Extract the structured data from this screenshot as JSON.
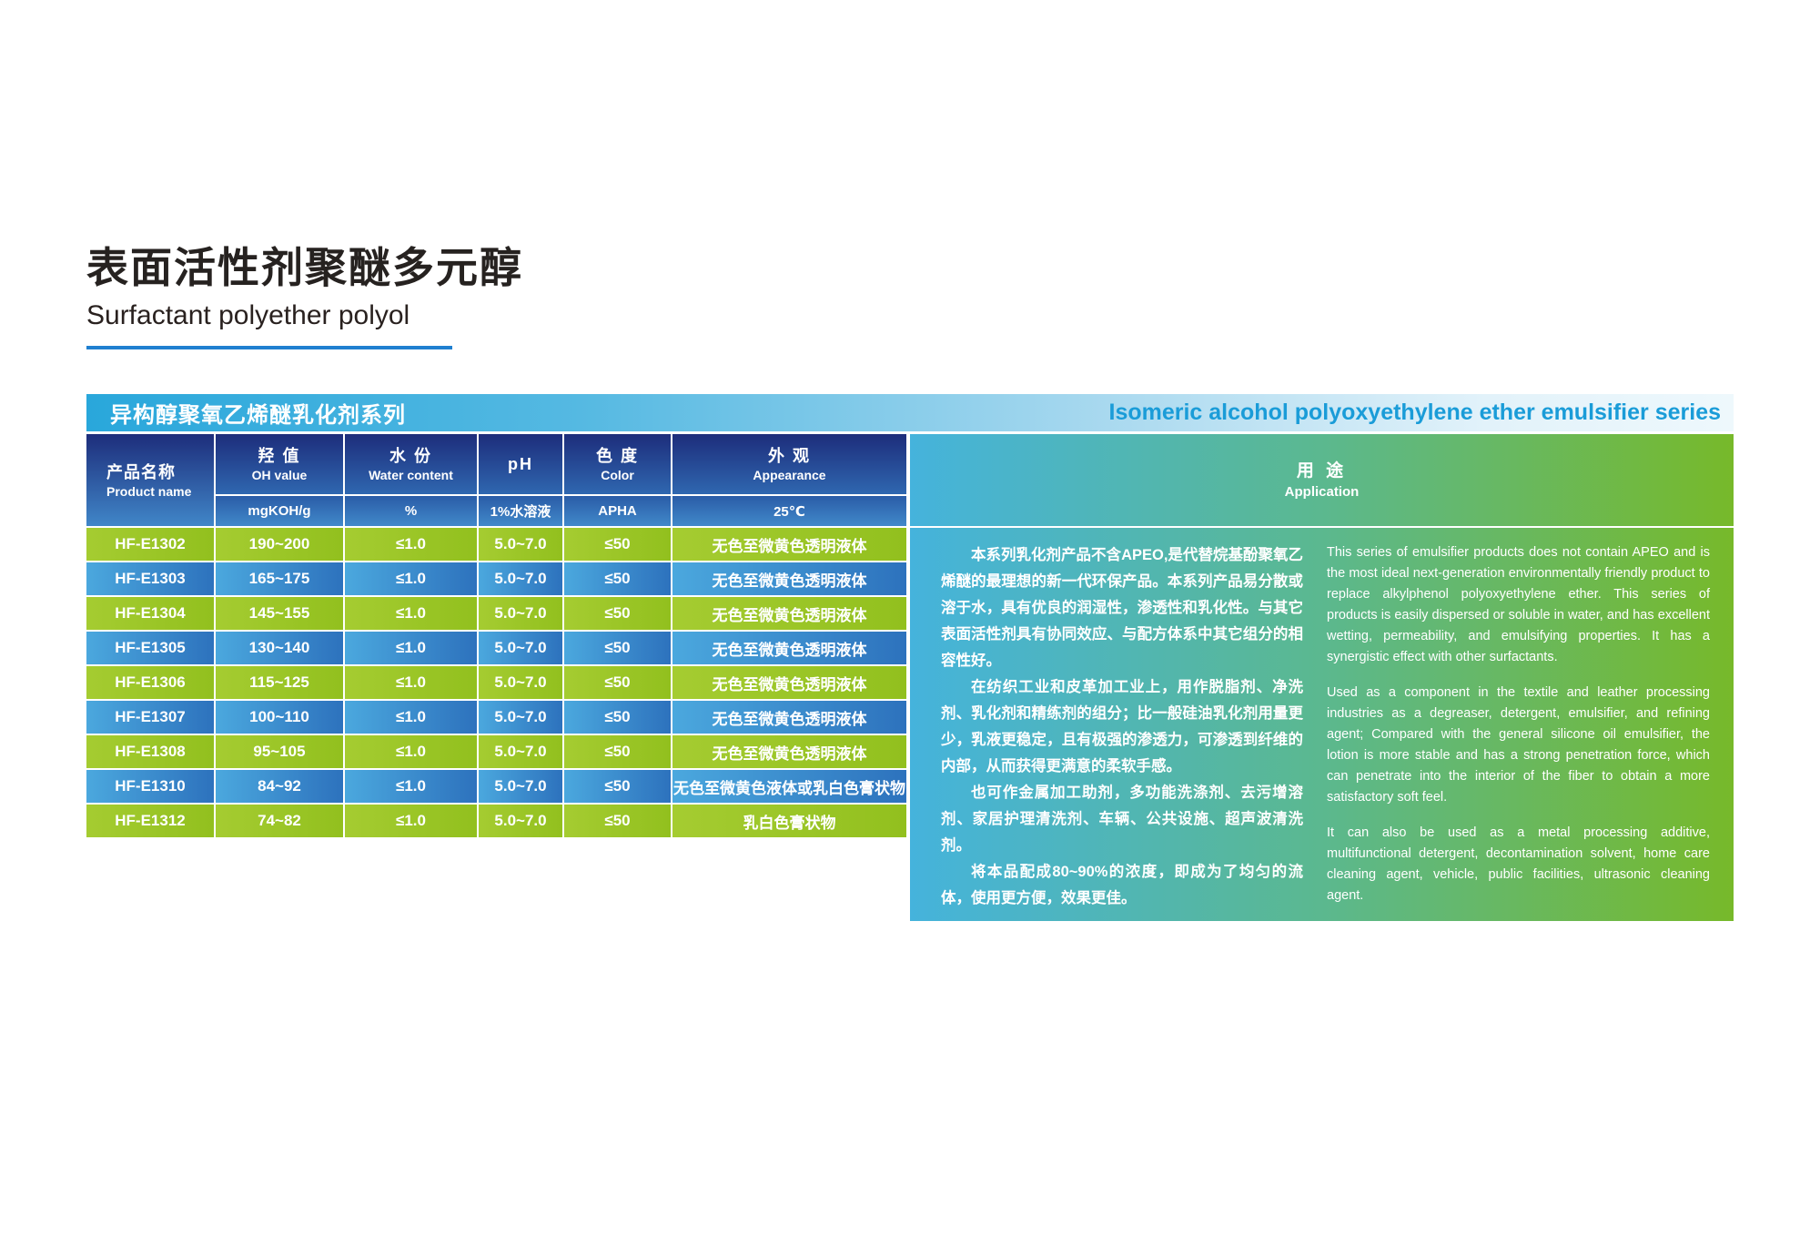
{
  "page": {
    "title_zh": "表面活性剂聚醚多元醇",
    "title_en": "Surfactant polyether polyol"
  },
  "banner": {
    "series_zh": "异构醇聚氧乙烯醚乳化剂系列",
    "series_en": "Isomeric alcohol polyoxyethylene ether emulsifier series"
  },
  "table": {
    "columns": [
      {
        "zh": "产品名称",
        "en": "Product name",
        "unit": ""
      },
      {
        "zh": "羟 值",
        "en": "OH value",
        "unit": "mgKOH/g"
      },
      {
        "zh": "水 份",
        "en": "Water content",
        "unit": "%"
      },
      {
        "zh": "pH",
        "en": "",
        "unit": "1%水溶液"
      },
      {
        "zh": "色 度",
        "en": "Color",
        "unit": "APHA"
      },
      {
        "zh": "外 观",
        "en": "Appearance",
        "unit": "25℃"
      }
    ],
    "rows": [
      {
        "name": "HF-E1302",
        "oh": "190~200",
        "water": "≤1.0",
        "ph": "5.0~7.0",
        "color": "≤50",
        "appearance": "无色至微黄色透明液体"
      },
      {
        "name": "HF-E1303",
        "oh": "165~175",
        "water": "≤1.0",
        "ph": "5.0~7.0",
        "color": "≤50",
        "appearance": "无色至微黄色透明液体"
      },
      {
        "name": "HF-E1304",
        "oh": "145~155",
        "water": "≤1.0",
        "ph": "5.0~7.0",
        "color": "≤50",
        "appearance": "无色至微黄色透明液体"
      },
      {
        "name": "HF-E1305",
        "oh": "130~140",
        "water": "≤1.0",
        "ph": "5.0~7.0",
        "color": "≤50",
        "appearance": "无色至微黄色透明液体"
      },
      {
        "name": "HF-E1306",
        "oh": "115~125",
        "water": "≤1.0",
        "ph": "5.0~7.0",
        "color": "≤50",
        "appearance": "无色至微黄色透明液体"
      },
      {
        "name": "HF-E1307",
        "oh": "100~110",
        "water": "≤1.0",
        "ph": "5.0~7.0",
        "color": "≤50",
        "appearance": "无色至微黄色透明液体"
      },
      {
        "name": "HF-E1308",
        "oh": "95~105",
        "water": "≤1.0",
        "ph": "5.0~7.0",
        "color": "≤50",
        "appearance": "无色至微黄色透明液体"
      },
      {
        "name": "HF-E1310",
        "oh": "84~92",
        "water": "≤1.0",
        "ph": "5.0~7.0",
        "color": "≤50",
        "appearance": "无色至微黄色液体或乳白色膏状物"
      },
      {
        "name": "HF-E1312",
        "oh": "74~82",
        "water": "≤1.0",
        "ph": "5.0~7.0",
        "color": "≤50",
        "appearance": "乳白色膏状物"
      }
    ]
  },
  "application": {
    "header_zh": "用 途",
    "header_en": "Application",
    "zh_paragraphs": [
      "本系列乳化剂产品不含APEO,是代替烷基酚聚氧乙烯醚的最理想的新一代环保产品。本系列产品易分散或溶于水，具有优良的润湿性，渗透性和乳化性。与其它表面活性剂具有协同效应、与配方体系中其它组分的相容性好。",
      "在纺织工业和皮革加工业上，用作脱脂剂、净洗剂、乳化剂和精练剂的组分；比一般硅油乳化剂用量更少，乳液更稳定，且有极强的渗透力，可渗透到纤维的内部，从而获得更满意的柔软手感。",
      "也可作金属加工助剂，多功能洗涤剂、去污增溶剂、家居护理清洗剂、车辆、公共设施、超声波清洗剂。",
      "将本品配成80~90%的浓度，即成为了均匀的流体，使用更方便，效果更佳。"
    ],
    "en_paragraphs": [
      "This series of emulsifier products does not contain APEO and is the most ideal next-generation environmentally friendly product to replace alkylphenol polyoxyethylene ether. This series of products is easily dispersed or soluble in water, and has excellent wetting, permeability, and emulsifying properties. It has a synergistic effect with other surfactants.",
      "Used as a component in the textile and leather processing industries as a degreaser, detergent, emulsifier, and refining agent; Compared with the general silicone oil emulsifier, the lotion is more stable and has a strong penetration force, which can penetrate into the interior of the fiber to obtain a more satisfactory soft feel.",
      "It can also be used as a metal processing additive, multifunctional detergent, decontamination solvent, home care cleaning agent, vehicle, public facilities, ultrasonic cleaning agent."
    ]
  },
  "colors": {
    "title_underline": "#1f7fd0",
    "banner_gradient_left": "#29a7db",
    "banner_series_en_text": "#1a9cd8",
    "header_navy_top": "#1d2d7b",
    "header_blue_bottom": "#4086c8",
    "row_green_light": "#a5cc31",
    "row_green_dark": "#92c01e",
    "row_blue_light": "#4ba8de",
    "row_blue_dark": "#2d72bd",
    "app_panel_blue": "#45b3dc",
    "app_panel_green": "#77b92a"
  }
}
